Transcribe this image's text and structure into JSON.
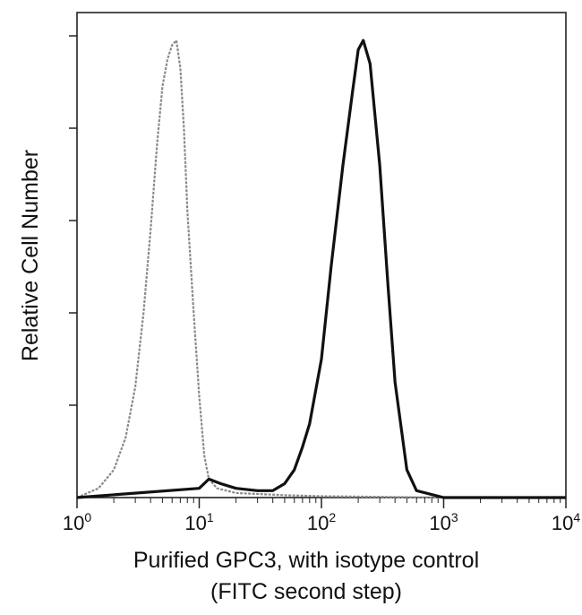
{
  "chart_data": {
    "type": "line",
    "title": "",
    "xlabel_line1": "Purified GPC3, with isotype control",
    "xlabel_line2": "(FITC second step)",
    "ylabel": "Relative Cell Number",
    "x_scale": "log",
    "xlim": [
      1,
      10000
    ],
    "ylim": [
      0,
      100
    ],
    "x_ticks": [
      {
        "base": "10",
        "exp": "0",
        "value": 1
      },
      {
        "base": "10",
        "exp": "1",
        "value": 10
      },
      {
        "base": "10",
        "exp": "2",
        "value": 100
      },
      {
        "base": "10",
        "exp": "3",
        "value": 1000
      },
      {
        "base": "10",
        "exp": "4",
        "value": 10000
      }
    ],
    "grid": false,
    "legend": "none",
    "series": [
      {
        "color": "#8a8a8a",
        "x": [
          1.0,
          1.5,
          2.0,
          2.5,
          3.0,
          3.5,
          4.0,
          4.5,
          5.0,
          5.5,
          6.0,
          6.5,
          7.0,
          7.5,
          8.0,
          9.0,
          10.0,
          11.0,
          12.0,
          14.0,
          20.0,
          50.0,
          100.0,
          1000.0,
          10000.0
        ],
        "y": [
          0,
          2,
          6,
          13,
          24,
          40,
          58,
          76,
          89,
          95,
          98,
          99,
          93,
          80,
          62,
          40,
          22,
          9,
          4,
          2,
          1,
          0.5,
          0.3,
          0,
          0
        ]
      },
      {
        "color": "#111111",
        "x": [
          1.0,
          10.0,
          12.0,
          15.0,
          20.0,
          30.0,
          40.0,
          50.0,
          60.0,
          70.0,
          80.0,
          100.0,
          120.0,
          150.0,
          180.0,
          200.0,
          220.0,
          250.0,
          300.0,
          350.0,
          400.0,
          500.0,
          600.0,
          1000.0,
          10000.0
        ],
        "y": [
          0,
          2,
          4,
          3,
          2,
          1.5,
          1.5,
          3,
          6,
          11,
          16,
          30,
          50,
          72,
          88,
          97,
          99,
          94,
          72,
          46,
          25,
          6,
          1.5,
          0,
          0
        ]
      }
    ]
  }
}
